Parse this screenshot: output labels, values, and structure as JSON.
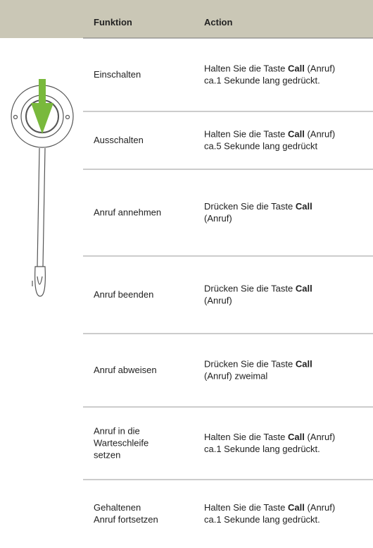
{
  "table": {
    "header": [
      "Funktion",
      "Action"
    ],
    "rows": [
      {
        "function": [
          "Einschalten"
        ],
        "action": [
          [
            {
              "text": "Halten Sie die Taste "
            },
            {
              "text": "Call",
              "bold": true
            },
            {
              "text": " (Anruf)"
            }
          ],
          [
            {
              "text": "ca.1 Sekunde lang gedrückt."
            }
          ]
        ]
      },
      {
        "function": [
          "Ausschalten"
        ],
        "action": [
          [
            {
              "text": "Halten Sie die Taste "
            },
            {
              "text": "Call",
              "bold": true
            },
            {
              "text": " (Anruf)"
            }
          ],
          [
            {
              "text": "ca.5 Sekunde lang gedrückt"
            }
          ]
        ]
      },
      {
        "function": [
          "Anruf annehmen"
        ],
        "action": [
          [
            {
              "text": "Drücken Sie die Taste "
            },
            {
              "text": "Call",
              "bold": true
            }
          ],
          [
            {
              "text": "(Anruf)"
            }
          ]
        ]
      },
      {
        "function": [
          "Anruf beenden"
        ],
        "action": [
          [
            {
              "text": "Drücken Sie die Taste "
            },
            {
              "text": "Call",
              "bold": true
            }
          ],
          [
            {
              "text": "(Anruf)"
            }
          ]
        ]
      },
      {
        "function": [
          "Anruf abweisen"
        ],
        "action": [
          [
            {
              "text": "Drücken Sie die Taste "
            },
            {
              "text": "Call",
              "bold": true
            }
          ],
          [
            {
              "text": "(Anruf) zweimal"
            }
          ]
        ]
      },
      {
        "function": [
          "Anruf in die",
          "Warteschleife",
          "setzen"
        ],
        "action": [
          [
            {
              "text": "Halten Sie die Taste "
            },
            {
              "text": "Call",
              "bold": true
            },
            {
              "text": " (Anruf)"
            }
          ],
          [
            {
              "text": "ca.1 Sekunde lang gedrückt."
            }
          ]
        ]
      },
      {
        "function": [
          "Gehaltenen",
          "Anruf fortsetzen"
        ],
        "action": [
          [
            {
              "text": "Halten Sie die Taste "
            },
            {
              "text": "Call",
              "bold": true
            },
            {
              "text": " (Anruf)"
            }
          ],
          [
            {
              "text": "ca.1 Sekunde lang gedrückt."
            }
          ]
        ]
      }
    ]
  }
}
